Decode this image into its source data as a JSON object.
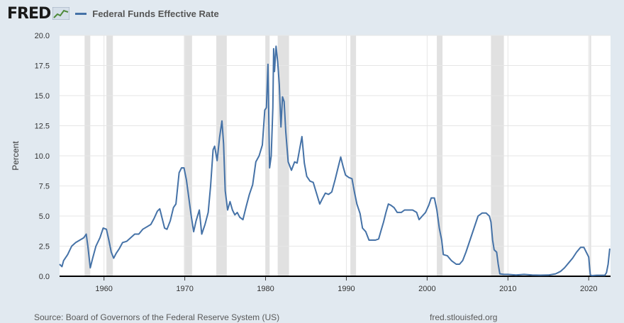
{
  "header": {
    "logo_text": "FRED",
    "logo_icon": "trend-line-icon",
    "series_label": "Federal Funds Effective Rate",
    "series_color": "#4572a7"
  },
  "footer": {
    "source": "Source: Board of Governors of the Federal Reserve System (US)",
    "site": "fred.stlouisfed.org"
  },
  "chart_data": {
    "type": "line",
    "ylabel": "Percent",
    "xlabel": "",
    "xlim": [
      1954.5,
      2022.7
    ],
    "ylim": [
      0,
      20
    ],
    "grid": true,
    "legend_placement": "top-left",
    "x_ticks": [
      1960,
      1970,
      1980,
      1990,
      2000,
      2010,
      2020
    ],
    "y_ticks": [
      "0.0",
      "2.5",
      "5.0",
      "7.5",
      "10.0",
      "12.5",
      "15.0",
      "17.5",
      "20.0"
    ],
    "recessions": [
      [
        1957.6,
        1958.3
      ],
      [
        1960.3,
        1961.1
      ],
      [
        1969.9,
        1970.9
      ],
      [
        1973.9,
        1975.2
      ],
      [
        1980.0,
        1980.5
      ],
      [
        1981.5,
        1982.9
      ],
      [
        1990.5,
        1991.2
      ],
      [
        2001.2,
        2001.9
      ],
      [
        2007.9,
        2009.5
      ],
      [
        2020.1,
        2020.3
      ]
    ],
    "series": [
      {
        "color": "#4572a7",
        "x": [
          1954.5,
          1954.8,
          1955.0,
          1955.5,
          1956.0,
          1956.5,
          1957.0,
          1957.5,
          1957.8,
          1958.0,
          1958.3,
          1958.6,
          1959.0,
          1959.5,
          1959.9,
          1960.3,
          1960.6,
          1960.9,
          1961.2,
          1961.5,
          1961.9,
          1962.3,
          1962.8,
          1963.3,
          1963.8,
          1964.3,
          1964.8,
          1965.3,
          1965.8,
          1966.2,
          1966.6,
          1966.9,
          1967.2,
          1967.5,
          1967.8,
          1968.2,
          1968.6,
          1968.9,
          1969.3,
          1969.6,
          1969.9,
          1970.2,
          1970.5,
          1970.8,
          1971.1,
          1971.4,
          1971.8,
          1972.1,
          1972.5,
          1972.9,
          1973.2,
          1973.5,
          1973.7,
          1974.0,
          1974.3,
          1974.6,
          1974.8,
          1975.0,
          1975.3,
          1975.6,
          1975.9,
          1976.2,
          1976.5,
          1976.8,
          1977.2,
          1977.6,
          1978.0,
          1978.4,
          1978.8,
          1979.2,
          1979.6,
          1979.9,
          1980.1,
          1980.3,
          1980.5,
          1980.7,
          1980.9,
          1981.0,
          1981.1,
          1981.3,
          1981.5,
          1981.7,
          1981.9,
          1982.1,
          1982.3,
          1982.5,
          1982.8,
          1983.2,
          1983.6,
          1983.9,
          1984.2,
          1984.5,
          1984.8,
          1985.1,
          1985.5,
          1985.9,
          1986.3,
          1986.7,
          1987.0,
          1987.4,
          1987.8,
          1988.2,
          1988.6,
          1989.0,
          1989.3,
          1989.6,
          1989.9,
          1990.3,
          1990.7,
          1991.0,
          1991.3,
          1991.7,
          1992.0,
          1992.4,
          1992.8,
          1993.2,
          1993.6,
          1994.0,
          1994.3,
          1994.6,
          1994.9,
          1995.2,
          1995.5,
          1995.9,
          1996.3,
          1996.8,
          1997.2,
          1997.7,
          1998.2,
          1998.7,
          1999.0,
          1999.4,
          1999.8,
          2000.2,
          2000.5,
          2000.9,
          2001.2,
          2001.5,
          2001.8,
          2002.0,
          2002.5,
          2003.0,
          2003.6,
          2004.0,
          2004.4,
          2004.8,
          2005.3,
          2005.8,
          2006.3,
          2006.8,
          2007.3,
          2007.7,
          2007.9,
          2008.1,
          2008.3,
          2008.6,
          2008.8,
          2009.0,
          2009.5,
          2010.0,
          2011.0,
          2012.0,
          2013.0,
          2014.0,
          2015.0,
          2015.9,
          2016.5,
          2017.0,
          2017.5,
          2018.0,
          2018.5,
          2019.0,
          2019.4,
          2019.7,
          2020.0,
          2020.2,
          2020.4,
          2021.0,
          2022.0,
          2022.2,
          2022.4,
          2022.6
        ],
        "y": [
          1.0,
          0.8,
          1.3,
          1.8,
          2.5,
          2.8,
          3.0,
          3.2,
          3.5,
          2.5,
          0.7,
          1.5,
          2.5,
          3.2,
          4.0,
          3.9,
          3.0,
          2.0,
          1.5,
          1.9,
          2.3,
          2.8,
          2.9,
          3.2,
          3.5,
          3.5,
          3.9,
          4.1,
          4.3,
          4.8,
          5.4,
          5.6,
          4.8,
          4.0,
          3.9,
          4.6,
          5.7,
          6.0,
          8.6,
          9.0,
          9.0,
          8.0,
          6.5,
          5.0,
          3.7,
          4.6,
          5.5,
          3.5,
          4.3,
          5.3,
          7.5,
          10.5,
          10.8,
          9.6,
          11.5,
          12.9,
          11.0,
          7.1,
          5.5,
          6.2,
          5.5,
          5.1,
          5.3,
          4.9,
          4.7,
          5.8,
          6.8,
          7.6,
          9.5,
          10.0,
          10.9,
          13.8,
          14.0,
          17.6,
          9.0,
          10.0,
          14.0,
          18.9,
          17.0,
          19.1,
          17.8,
          15.9,
          12.4,
          14.9,
          14.5,
          12.0,
          9.5,
          8.8,
          9.5,
          9.4,
          10.5,
          11.6,
          9.4,
          8.3,
          7.9,
          7.8,
          6.9,
          6.0,
          6.4,
          6.9,
          6.8,
          7.0,
          8.0,
          9.1,
          9.9,
          9.1,
          8.4,
          8.2,
          8.1,
          7.0,
          6.0,
          5.2,
          4.0,
          3.7,
          3.0,
          3.0,
          3.0,
          3.1,
          3.8,
          4.5,
          5.3,
          6.0,
          5.9,
          5.7,
          5.3,
          5.3,
          5.5,
          5.5,
          5.5,
          5.3,
          4.7,
          5.0,
          5.3,
          5.9,
          6.5,
          6.5,
          5.5,
          4.0,
          3.0,
          1.8,
          1.7,
          1.3,
          1.0,
          1.0,
          1.3,
          2.0,
          3.0,
          4.0,
          5.0,
          5.25,
          5.25,
          5.0,
          4.5,
          3.0,
          2.2,
          2.0,
          1.0,
          0.2,
          0.15,
          0.15,
          0.1,
          0.15,
          0.1,
          0.09,
          0.1,
          0.2,
          0.4,
          0.7,
          1.1,
          1.5,
          2.0,
          2.4,
          2.4,
          2.0,
          1.6,
          0.1,
          0.05,
          0.08,
          0.08,
          0.3,
          1.0,
          2.3
        ]
      }
    ]
  }
}
